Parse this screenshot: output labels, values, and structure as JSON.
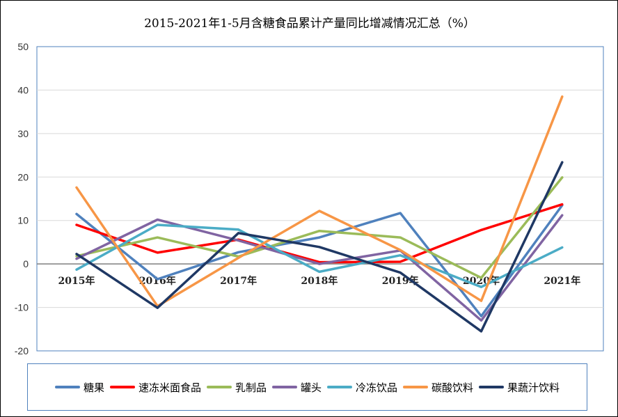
{
  "chart_data": {
    "type": "line",
    "title": "2015-2021年1-5月含糖食品累计产量同比增减情况汇总（%）",
    "categories": [
      "2015年",
      "2016年",
      "2017年",
      "2018年",
      "2019年",
      "2020年",
      "2021年"
    ],
    "ylim": [
      -20,
      50
    ],
    "yticks": [
      "50",
      "40",
      "30",
      "20",
      "10",
      "0",
      "-10",
      "-20"
    ],
    "grid": true,
    "legend_position": "bottom",
    "series": [
      {
        "name": "糖果",
        "color": "#4f81bd",
        "values": [
          11.5,
          -3.5,
          2.7,
          6.1,
          11.7,
          -12.0,
          13.5
        ]
      },
      {
        "name": "速冻米面食品",
        "color": "#ff0000",
        "values": [
          9.0,
          2.6,
          5.6,
          0.4,
          0.5,
          7.8,
          13.7
        ]
      },
      {
        "name": "乳制品",
        "color": "#9bbb59",
        "values": [
          1.8,
          6.1,
          1.7,
          7.6,
          6.1,
          -3.2,
          19.9
        ]
      },
      {
        "name": "罐头",
        "color": "#8064a2",
        "values": [
          1.2,
          10.2,
          5.4,
          0.0,
          3.1,
          -13.0,
          11.2
        ]
      },
      {
        "name": "冷冻饮品",
        "color": "#4bacc6",
        "values": [
          -1.3,
          9.0,
          7.9,
          -1.8,
          2.0,
          -5.3,
          3.8
        ]
      },
      {
        "name": "碳酸饮料",
        "color": "#f79646",
        "values": [
          17.6,
          -9.7,
          1.4,
          12.2,
          3.2,
          -8.5,
          38.5
        ]
      },
      {
        "name": "果蔬汁饮料",
        "color": "#1f3864",
        "values": [
          2.3,
          -10.1,
          7.1,
          3.9,
          -2.0,
          -15.5,
          23.4
        ]
      }
    ]
  }
}
